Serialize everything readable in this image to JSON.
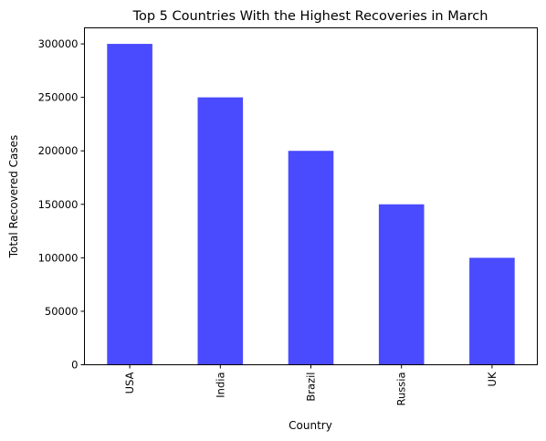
{
  "chart_data": {
    "type": "bar",
    "title": "Top 5 Countries With the Highest Recoveries in March",
    "xlabel": "Country",
    "ylabel": "Total Recovered Cases",
    "categories": [
      "USA",
      "India",
      "Brazil",
      "Russia",
      "UK"
    ],
    "values": [
      300000,
      250000,
      200000,
      150000,
      100000
    ],
    "yticks": [
      0,
      50000,
      100000,
      150000,
      200000,
      250000,
      300000
    ],
    "ylim": [
      0,
      315000
    ],
    "bar_color": "#4a4aff",
    "grid": false,
    "legend": "none"
  }
}
